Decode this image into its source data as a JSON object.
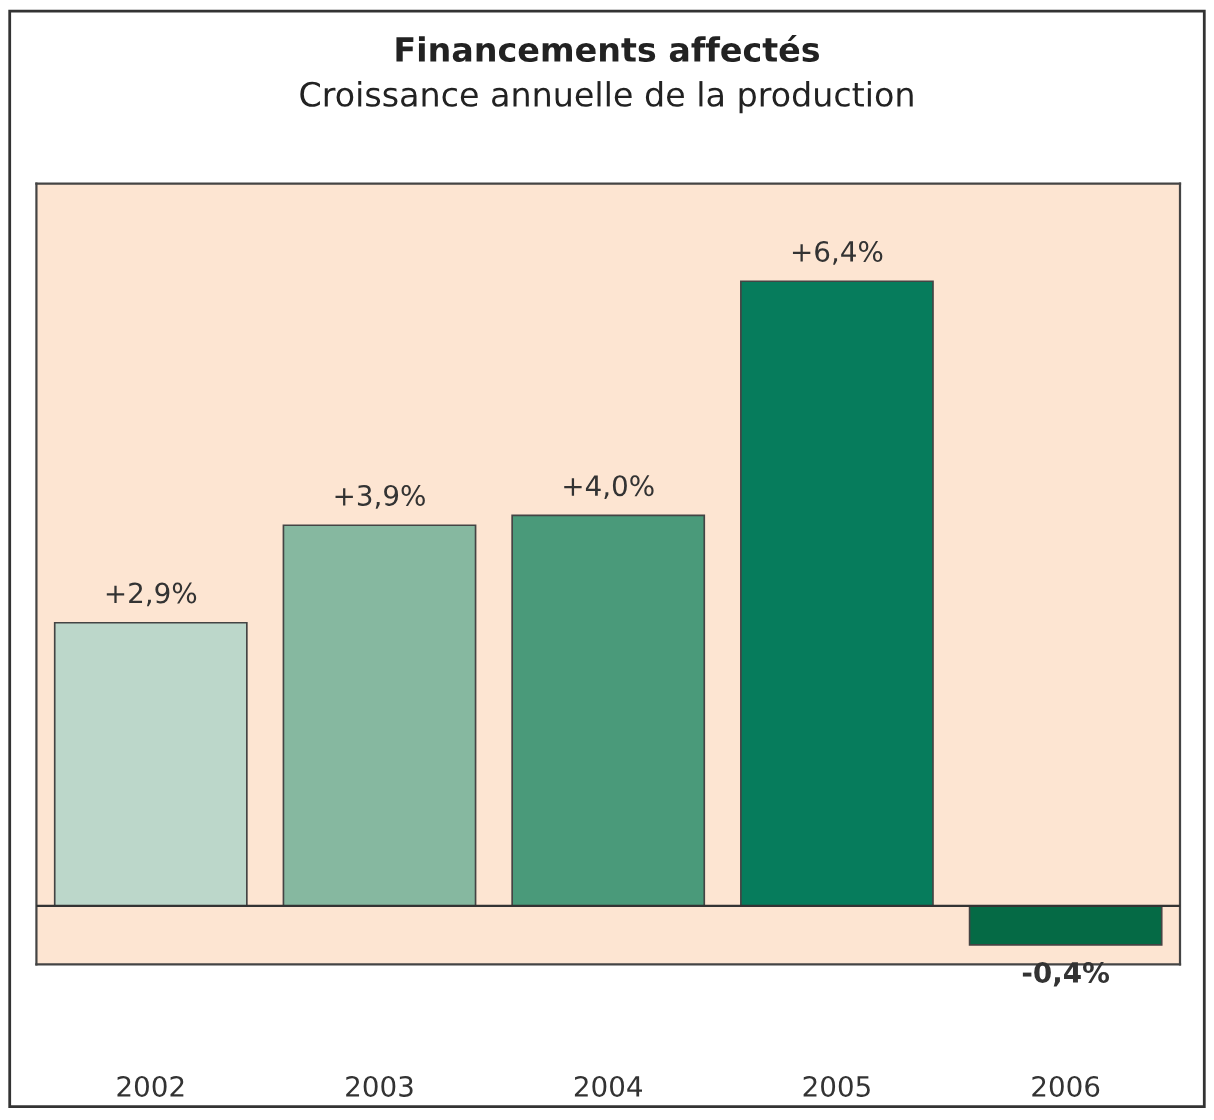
{
  "chart_data": {
    "type": "bar",
    "title": "Financements affectés",
    "subtitle": "Croissance annuelle de la production",
    "categories": [
      "2002",
      "2003",
      "2004",
      "2005",
      "2006"
    ],
    "values": [
      2.9,
      3.9,
      4.0,
      6.4,
      -0.4
    ],
    "colors": [
      "#bcd7ca",
      "#86b8a0",
      "#4a9a7a",
      "#067c5c",
      "#056a45"
    ],
    "value_labels": [
      "+2,9%",
      "+3,9%",
      "+4,0%",
      "+6,4%",
      "-0,4%"
    ],
    "ylim": [
      -0.6,
      7.4
    ],
    "tick_labels": "x",
    "grid": false,
    "legend": false
  }
}
